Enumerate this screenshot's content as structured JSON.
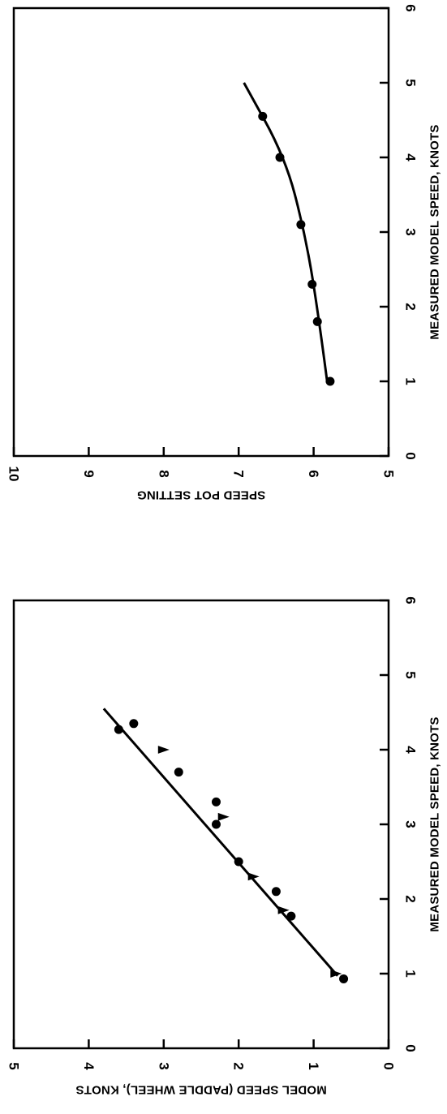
{
  "chart_data": [
    {
      "type": "scatter",
      "xlabel": "MEASURED MODEL SPEED, KNOTS",
      "ylabel": "SPEED POT SETTING",
      "xlim": [
        0,
        6
      ],
      "ylim": [
        5,
        10
      ],
      "x_ticks": [
        "0",
        "1",
        "2",
        "3",
        "4",
        "5",
        "6"
      ],
      "y_ticks": [
        "5",
        "6",
        "7",
        "8",
        "9",
        "10"
      ],
      "grid": false,
      "series": [
        {
          "marker": "circle",
          "points": [
            {
              "x": 1.0,
              "y": 5.78
            },
            {
              "x": 1.8,
              "y": 5.95
            },
            {
              "x": 2.3,
              "y": 6.02
            },
            {
              "x": 3.1,
              "y": 6.17
            },
            {
              "x": 4.0,
              "y": 6.45
            },
            {
              "x": 4.55,
              "y": 6.68
            }
          ]
        }
      ],
      "fit_curve": [
        {
          "x": 1.0,
          "y": 5.82
        },
        {
          "x": 2.0,
          "y": 5.95
        },
        {
          "x": 3.0,
          "y": 6.12
        },
        {
          "x": 4.0,
          "y": 6.38
        },
        {
          "x": 5.0,
          "y": 6.93
        }
      ]
    },
    {
      "type": "scatter",
      "xlabel": "MEASURED MODEL SPEED, KNOTS",
      "ylabel": "MODEL SPEED (PADDLE WHEEL), KNOTS",
      "xlim": [
        0,
        6
      ],
      "ylim": [
        0,
        5
      ],
      "x_ticks": [
        "0",
        "1",
        "2",
        "3",
        "4",
        "5",
        "6"
      ],
      "y_ticks": [
        "0",
        "1",
        "2",
        "3",
        "4",
        "5"
      ],
      "grid": false,
      "series": [
        {
          "marker": "circle",
          "points": [
            {
              "x": 0.93,
              "y": 0.6
            },
            {
              "x": 1.77,
              "y": 1.3
            },
            {
              "x": 2.1,
              "y": 1.5
            },
            {
              "x": 2.5,
              "y": 2.0
            },
            {
              "x": 3.0,
              "y": 2.3
            },
            {
              "x": 3.3,
              "y": 2.3
            },
            {
              "x": 3.7,
              "y": 2.8
            },
            {
              "x": 4.35,
              "y": 3.4
            },
            {
              "x": 4.27,
              "y": 3.6
            }
          ]
        },
        {
          "marker": "triangle",
          "points": [
            {
              "x": 1.0,
              "y": 0.7
            },
            {
              "x": 1.85,
              "y": 1.4
            },
            {
              "x": 2.3,
              "y": 1.8
            },
            {
              "x": 3.1,
              "y": 2.2
            },
            {
              "x": 4.0,
              "y": 3.0
            }
          ]
        }
      ],
      "fit_curve": [
        {
          "x": 0.97,
          "y": 0.68
        },
        {
          "x": 4.55,
          "y": 3.8
        }
      ]
    }
  ]
}
